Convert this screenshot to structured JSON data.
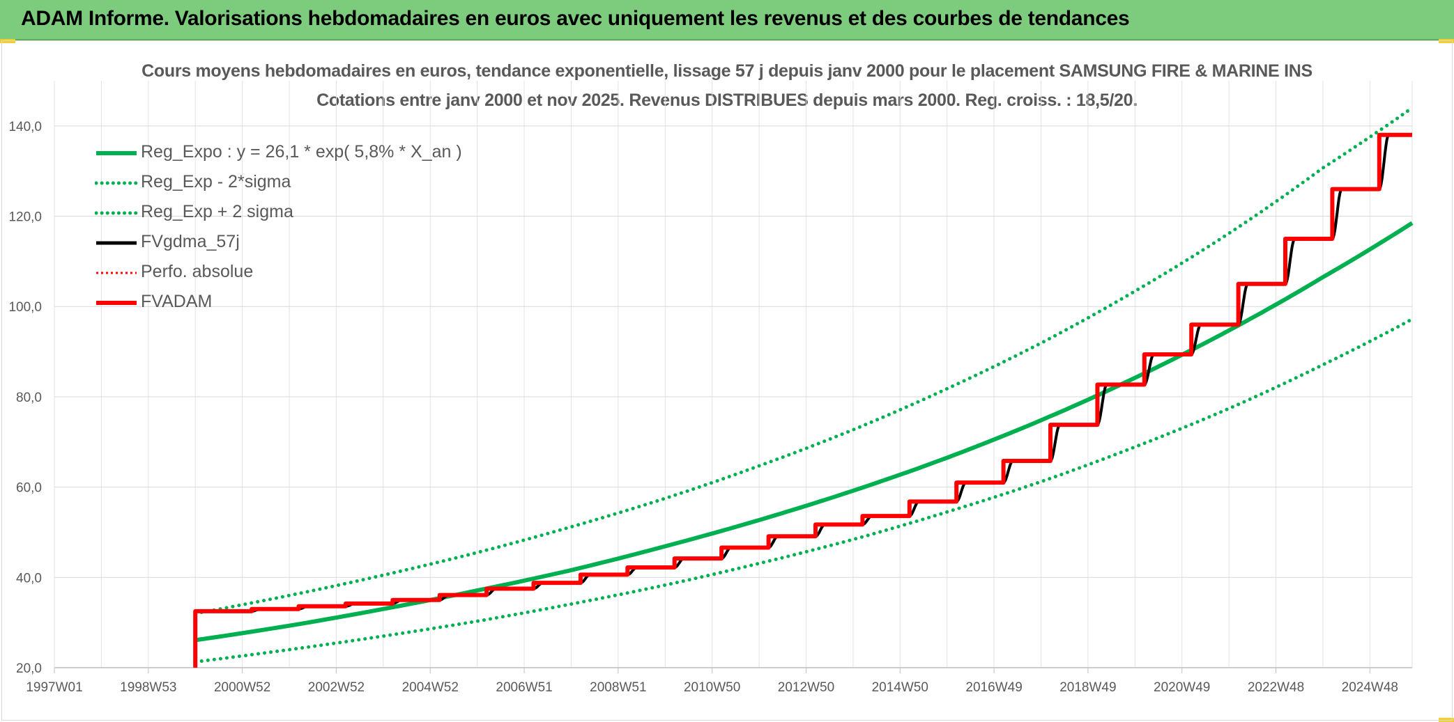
{
  "banner": {
    "title": "ADAM Informe. Valorisations hebdomadaires en euros avec uniquement les revenus et des courbes de tendances",
    "background": "#7dcb7d"
  },
  "chart_data": {
    "type": "line",
    "title": "Cours moyens hebdomadaires en euros, tendance exponentielle, lissage 57 j depuis janv 2000 pour le placement SAMSUNG FIRE & MARINE INS",
    "subtitle": "Cotations entre janv 2000 et nov 2025. Revenus DISTRIBUES depuis mars 2000. Reg. croiss. : 18,5/20.",
    "xlabel": "",
    "ylabel": "",
    "x_range": [
      1997.0,
      2025.9
    ],
    "ylim": [
      20,
      150
    ],
    "y_ticks": [
      "20,0",
      "40,0",
      "60,0",
      "80,0",
      "100,0",
      "120,0",
      "140,0"
    ],
    "y_tick_values": [
      20,
      40,
      60,
      80,
      100,
      120,
      140
    ],
    "x_ticks": [
      "1997W01",
      "1998W53",
      "2000W52",
      "2002W52",
      "2004W52",
      "2006W51",
      "2008W51",
      "2010W50",
      "2012W50",
      "2014W50",
      "2016W49",
      "2018W49",
      "2020W49",
      "2022W48",
      "2024W48"
    ],
    "x_tick_values": [
      1997.0,
      1999.0,
      2001.0,
      2003.0,
      2005.0,
      2007.0,
      2009.0,
      2011.0,
      2013.0,
      2015.0,
      2017.0,
      2019.0,
      2021.0,
      2023.0,
      2025.0
    ],
    "grid": true,
    "legend_position": "top-left",
    "series": [
      {
        "name": "Reg_Expo : y = 26,1 * exp( 5,8% *  X_an )",
        "style": "solid-thick",
        "color": "#00b050",
        "x": [
          2000.0,
          2002.0,
          2004.0,
          2006.0,
          2008.0,
          2010.0,
          2012.0,
          2014.0,
          2016.0,
          2018.0,
          2020.0,
          2022.0,
          2024.0,
          2025.9
        ],
        "values": [
          26.1,
          29.3,
          33.0,
          37.1,
          41.6,
          46.9,
          52.7,
          59.2,
          66.5,
          74.8,
          84.2,
          94.7,
          106.5,
          118.5
        ]
      },
      {
        "name": "Reg_Exp - 2*sigma",
        "style": "dotted",
        "color": "#00b050",
        "x": [
          2000.0,
          2002.0,
          2004.0,
          2006.0,
          2008.0,
          2010.0,
          2012.0,
          2014.0,
          2016.0,
          2018.0,
          2020.0,
          2022.0,
          2024.0,
          2025.9
        ],
        "values": [
          21.3,
          24.0,
          27.0,
          30.3,
          34.1,
          38.3,
          43.1,
          48.4,
          54.5,
          61.2,
          68.9,
          77.4,
          87.1,
          97.2
        ]
      },
      {
        "name": "Reg_Exp + 2 sigma",
        "style": "dotted",
        "color": "#00b050",
        "x": [
          2000.0,
          2002.0,
          2004.0,
          2006.0,
          2008.0,
          2010.0,
          2012.0,
          2014.0,
          2016.0,
          2018.0,
          2020.0,
          2022.0,
          2024.0,
          2025.9
        ],
        "values": [
          32.0,
          36.0,
          40.5,
          45.5,
          51.2,
          57.5,
          64.7,
          72.7,
          81.8,
          91.9,
          103.4,
          116.2,
          130.7,
          144.0
        ]
      },
      {
        "name": "FVgdma_57j",
        "style": "solid",
        "color": "#000000",
        "x": [
          2000.0,
          2000.2,
          2001.2,
          2001.4,
          2002.2,
          2002.4,
          2003.2,
          2003.4,
          2004.2,
          2004.4,
          2005.2,
          2005.4,
          2006.2,
          2006.4,
          2007.2,
          2007.4,
          2008.2,
          2008.4,
          2009.2,
          2009.4,
          2010.2,
          2010.4,
          2011.2,
          2011.4,
          2012.2,
          2012.4,
          2013.2,
          2013.4,
          2014.2,
          2014.4,
          2015.2,
          2015.4,
          2016.2,
          2016.4,
          2017.2,
          2017.4,
          2018.2,
          2018.4,
          2019.2,
          2019.4,
          2020.2,
          2020.4,
          2021.2,
          2021.4,
          2022.2,
          2022.4,
          2023.2,
          2023.4,
          2024.2,
          2024.4,
          2025.2,
          2025.4,
          2025.9
        ],
        "values": [
          32.5,
          32.5,
          32.5,
          33.0,
          33.0,
          33.6,
          33.6,
          34.2,
          34.2,
          35.0,
          35.0,
          36.1,
          36.1,
          37.5,
          37.5,
          38.8,
          38.8,
          40.6,
          40.6,
          42.2,
          42.2,
          44.2,
          44.2,
          46.6,
          46.6,
          49.1,
          49.1,
          51.7,
          51.7,
          53.6,
          53.6,
          56.8,
          56.8,
          61.0,
          61.0,
          65.8,
          65.8,
          73.8,
          73.8,
          82.7,
          82.7,
          89.4,
          89.4,
          96.0,
          96.0,
          105.0,
          105.0,
          115.0,
          115.0,
          126.0,
          126.0,
          138.0,
          138.0
        ]
      },
      {
        "name": "Perfo. absolue",
        "style": "dotted",
        "color": "#ff0000",
        "x": [],
        "values": []
      },
      {
        "name": "FVADAM",
        "style": "solid-thick",
        "color": "#ff0000",
        "x": [
          2000.0,
          2000.0,
          2001.2,
          2001.2,
          2002.2,
          2002.2,
          2003.2,
          2003.2,
          2004.2,
          2004.2,
          2005.2,
          2005.2,
          2006.2,
          2006.2,
          2007.2,
          2007.2,
          2008.2,
          2008.2,
          2009.2,
          2009.2,
          2010.2,
          2010.2,
          2011.2,
          2011.2,
          2012.2,
          2012.2,
          2013.2,
          2013.2,
          2014.2,
          2014.2,
          2015.2,
          2015.2,
          2016.2,
          2016.2,
          2017.2,
          2017.2,
          2018.2,
          2018.2,
          2019.2,
          2019.2,
          2020.2,
          2020.2,
          2021.2,
          2021.2,
          2022.2,
          2022.2,
          2023.2,
          2023.2,
          2024.2,
          2024.2,
          2025.2,
          2025.2,
          2025.9
        ],
        "values": [
          20.0,
          32.5,
          32.5,
          33.0,
          33.0,
          33.6,
          33.6,
          34.2,
          34.2,
          35.0,
          35.0,
          36.1,
          36.1,
          37.5,
          37.5,
          38.8,
          38.8,
          40.6,
          40.6,
          42.2,
          42.2,
          44.2,
          44.2,
          46.6,
          46.6,
          49.1,
          49.1,
          51.7,
          51.7,
          53.6,
          53.6,
          56.8,
          56.8,
          61.0,
          61.0,
          65.8,
          65.8,
          73.8,
          73.8,
          82.7,
          82.7,
          89.4,
          89.4,
          96.0,
          96.0,
          105.0,
          105.0,
          115.0,
          115.0,
          126.0,
          126.0,
          138.0,
          138.0
        ]
      }
    ]
  }
}
